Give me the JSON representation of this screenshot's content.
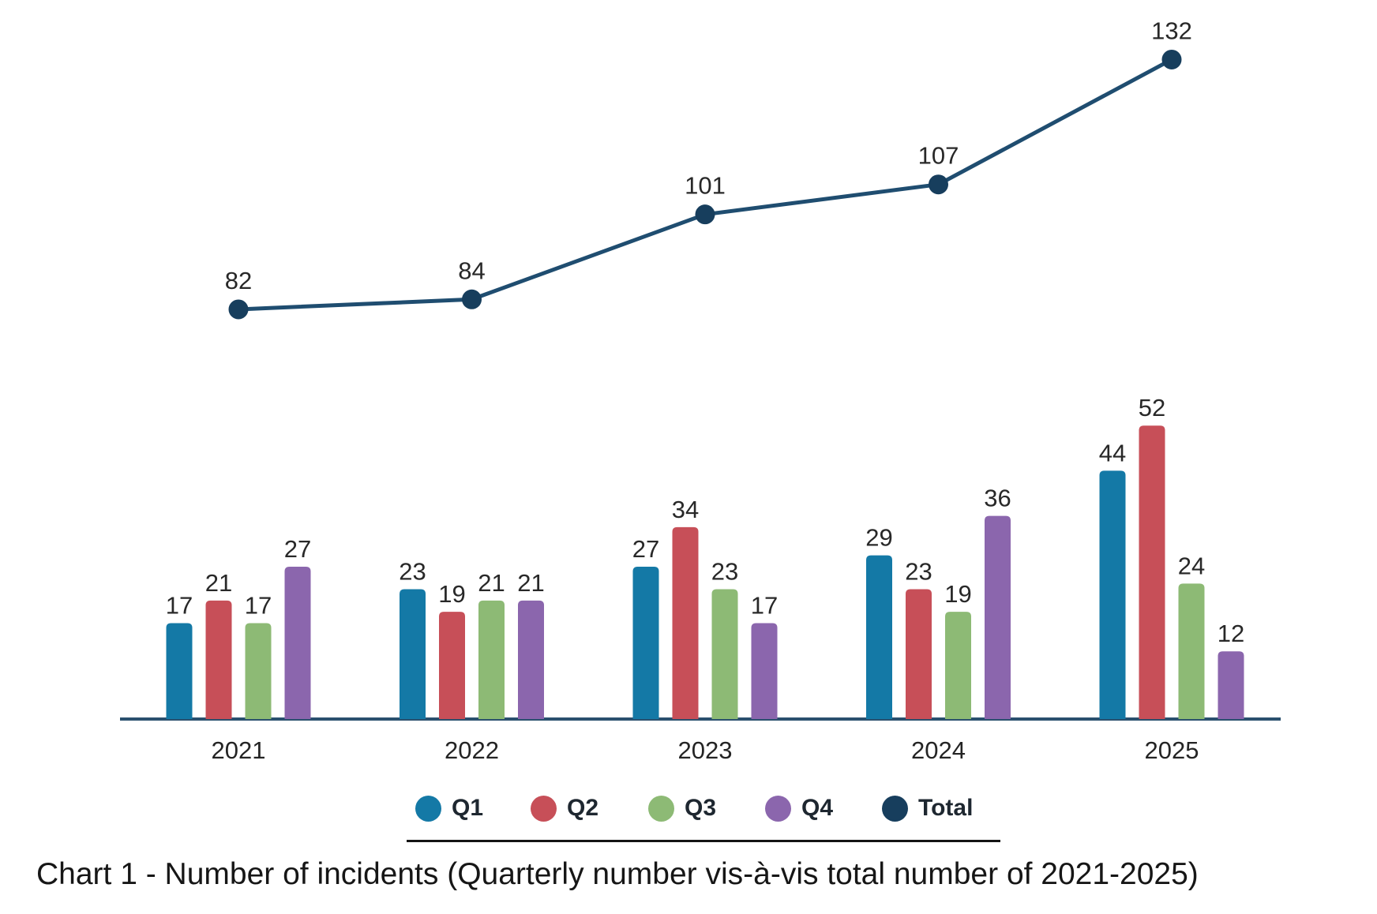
{
  "caption": "Chart 1 - Number of incidents (Quarterly number vis-à-vis total number of 2021-2025)",
  "colors": {
    "q1": "#1479A6",
    "q2": "#C74F58",
    "q3": "#8DBA75",
    "q4": "#8B66AD",
    "total_marker": "#173E5D",
    "total_line": "#1F4D70",
    "axis_line": "#2A506E",
    "label_text": "#282828",
    "year_text": "#242424",
    "legend_underline": "#141414",
    "caption_text": "#161616"
  },
  "legend": {
    "items": [
      {
        "label": "Q1",
        "color": "#1479A6"
      },
      {
        "label": "Q2",
        "color": "#C74F58"
      },
      {
        "label": "Q3",
        "color": "#8DBA75"
      },
      {
        "label": "Q4",
        "color": "#8B66AD"
      },
      {
        "label": "Total",
        "color": "#173E5D"
      }
    ]
  },
  "chart_data": {
    "type": "combo",
    "categories": [
      "2021",
      "2022",
      "2023",
      "2024",
      "2025"
    ],
    "series": [
      {
        "name": "Q1",
        "type": "bar",
        "color": "#1479A6",
        "values": [
          17,
          23,
          27,
          29,
          44
        ]
      },
      {
        "name": "Q2",
        "type": "bar",
        "color": "#C74F58",
        "values": [
          21,
          19,
          34,
          23,
          52
        ]
      },
      {
        "name": "Q3",
        "type": "bar",
        "color": "#8DBA75",
        "values": [
          17,
          21,
          23,
          19,
          24
        ]
      },
      {
        "name": "Q4",
        "type": "bar",
        "color": "#8B66AD",
        "values": [
          27,
          21,
          17,
          36,
          12
        ]
      },
      {
        "name": "Total",
        "type": "line",
        "color": "#173E5D",
        "values": [
          82,
          84,
          101,
          107,
          132
        ]
      }
    ],
    "title": "",
    "xlabel": "",
    "ylabel": "",
    "value_labels": true,
    "grid": false,
    "y_axis_visible": false,
    "x_axis_line": true,
    "legend_position": "bottom"
  }
}
